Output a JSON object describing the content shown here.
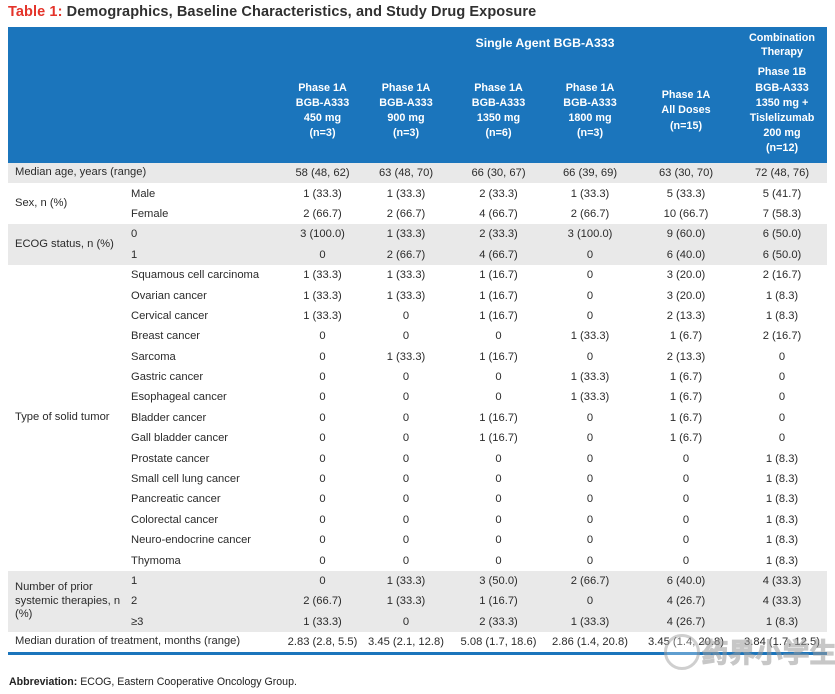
{
  "title": {
    "label": "Table 1:",
    "text": " Demographics, Baseline Characteristics, and Study Drug Exposure"
  },
  "colors": {
    "header_bg": "#1b75bc",
    "stripe": "#e9e9e9",
    "title_red": "#e4332a",
    "rule_blue": "#1b75bc"
  },
  "table": {
    "group_headers": {
      "single_agent": "Single Agent BGB-A333",
      "combination": "Combination\nTherapy"
    },
    "columns": [
      "Phase 1A\nBGB-A333\n450 mg\n(n=3)",
      "Phase 1A\nBGB-A333\n900 mg\n(n=3)",
      "Phase 1A\nBGB-A333\n1350 mg\n(n=6)",
      "Phase 1A\nBGB-A333\n1800 mg\n(n=3)",
      "Phase 1A\nAll Doses\n(n=15)",
      "Phase 1B\nBGB-A333\n1350 mg +\nTislelizumab\n200 mg\n(n=12)"
    ],
    "sections": [
      {
        "label": "Median age, years (range)",
        "span2": true,
        "shaded": true,
        "rows": [
          {
            "sub": "",
            "values": [
              "58 (48, 62)",
              "63 (48, 70)",
              "66 (30, 67)",
              "66 (39, 69)",
              "63 (30, 70)",
              "72 (48, 76)"
            ]
          }
        ]
      },
      {
        "label": "Sex, n (%)",
        "span2": false,
        "shaded": false,
        "rows": [
          {
            "sub": "Male",
            "values": [
              "1 (33.3)",
              "1 (33.3)",
              "2 (33.3)",
              "1 (33.3)",
              "5 (33.3)",
              "5 (41.7)"
            ]
          },
          {
            "sub": "Female",
            "values": [
              "2 (66.7)",
              "2 (66.7)",
              "4 (66.7)",
              "2 (66.7)",
              "10 (66.7)",
              "7 (58.3)"
            ]
          }
        ]
      },
      {
        "label": "ECOG status, n (%)",
        "span2": false,
        "shaded": true,
        "rows": [
          {
            "sub": "0",
            "values": [
              "3 (100.0)",
              "1 (33.3)",
              "2 (33.3)",
              "3 (100.0)",
              "9 (60.0)",
              "6 (50.0)"
            ]
          },
          {
            "sub": "1",
            "values": [
              "0",
              "2 (66.7)",
              "4 (66.7)",
              "0",
              "6 (40.0)",
              "6 (50.0)"
            ]
          }
        ]
      },
      {
        "label": "Type of solid tumor",
        "span2": false,
        "shaded": false,
        "rows": [
          {
            "sub": "Squamous cell carcinoma",
            "values": [
              "1 (33.3)",
              "1 (33.3)",
              "1 (16.7)",
              "0",
              "3 (20.0)",
              "2 (16.7)"
            ]
          },
          {
            "sub": "Ovarian cancer",
            "values": [
              "1 (33.3)",
              "1 (33.3)",
              "1 (16.7)",
              "0",
              "3 (20.0)",
              "1 (8.3)"
            ]
          },
          {
            "sub": "Cervical cancer",
            "values": [
              "1 (33.3)",
              "0",
              "1 (16.7)",
              "0",
              "2 (13.3)",
              "1 (8.3)"
            ]
          },
          {
            "sub": "Breast cancer",
            "values": [
              "0",
              "0",
              "0",
              "1 (33.3)",
              "1 (6.7)",
              "2 (16.7)"
            ]
          },
          {
            "sub": "Sarcoma",
            "values": [
              "0",
              "1 (33.3)",
              "1 (16.7)",
              "0",
              "2 (13.3)",
              "0"
            ]
          },
          {
            "sub": "Gastric cancer",
            "values": [
              "0",
              "0",
              "0",
              "1 (33.3)",
              "1 (6.7)",
              "0"
            ]
          },
          {
            "sub": "Esophageal cancer",
            "values": [
              "0",
              "0",
              "0",
              "1 (33.3)",
              "1 (6.7)",
              "0"
            ]
          },
          {
            "sub": "Bladder cancer",
            "values": [
              "0",
              "0",
              "1 (16.7)",
              "0",
              "1 (6.7)",
              "0"
            ]
          },
          {
            "sub": "Gall bladder cancer",
            "values": [
              "0",
              "0",
              "1 (16.7)",
              "0",
              "1 (6.7)",
              "0"
            ]
          },
          {
            "sub": "Prostate cancer",
            "values": [
              "0",
              "0",
              "0",
              "0",
              "0",
              "1 (8.3)"
            ]
          },
          {
            "sub": "Small cell lung cancer",
            "values": [
              "0",
              "0",
              "0",
              "0",
              "0",
              "1 (8.3)"
            ]
          },
          {
            "sub": "Pancreatic cancer",
            "values": [
              "0",
              "0",
              "0",
              "0",
              "0",
              "1 (8.3)"
            ]
          },
          {
            "sub": "Colorectal cancer",
            "values": [
              "0",
              "0",
              "0",
              "0",
              "0",
              "1 (8.3)"
            ]
          },
          {
            "sub": "Neuro-endocrine cancer",
            "values": [
              "0",
              "0",
              "0",
              "0",
              "0",
              "1 (8.3)"
            ]
          },
          {
            "sub": "Thymoma",
            "values": [
              "0",
              "0",
              "0",
              "0",
              "0",
              "1 (8.3)"
            ]
          }
        ]
      },
      {
        "label": "Number of prior systemic therapies, n (%)",
        "span2": false,
        "shaded": true,
        "rows": [
          {
            "sub": "1",
            "values": [
              "0",
              "1 (33.3)",
              "3 (50.0)",
              "2 (66.7)",
              "6 (40.0)",
              "4 (33.3)"
            ]
          },
          {
            "sub": "2",
            "values": [
              "2 (66.7)",
              "1 (33.3)",
              "1 (16.7)",
              "0",
              "4 (26.7)",
              "4 (33.3)"
            ]
          },
          {
            "sub": "≥3",
            "values": [
              "1 (33.3)",
              "0",
              "2 (33.3)",
              "1 (33.3)",
              "4 (26.7)",
              "1 (8.3)"
            ]
          }
        ]
      },
      {
        "label": "Median duration of treatment, months (range)",
        "span2": true,
        "shaded": false,
        "rows": [
          {
            "sub": "",
            "values": [
              "2.83 (2.8, 5.5)",
              "3.45 (2.1, 12.8)",
              "5.08 (1.7, 18.6)",
              "2.86 (1.4, 20.8)",
              "3.45 (1.4, 20.8)",
              "3.84 (1.7, 12.5)"
            ]
          }
        ]
      }
    ],
    "footnote": {
      "bold": "Abbreviation:",
      "text": " ECOG, Eastern Cooperative Oncology Group."
    }
  },
  "watermark": {
    "text": "药界小学生"
  }
}
